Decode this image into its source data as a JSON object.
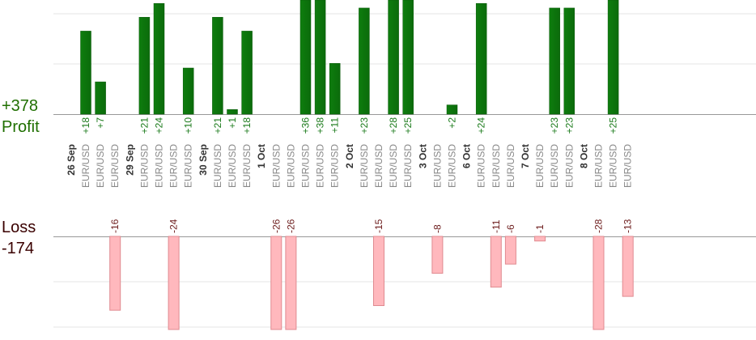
{
  "summary": {
    "profit_total": "+378",
    "profit_label": "Profit",
    "loss_label": "Loss",
    "loss_total": "-174"
  },
  "colors": {
    "profit_bar": "#0b6b0b",
    "profit_text": "#1a7a1a",
    "loss_fill": "#ffb8bd",
    "loss_stroke": "#e08a90",
    "loss_text": "#6b1a1a",
    "profit_summary": "#1f6f00",
    "loss_summary": "#3a0000",
    "grid": "#e6e6e6",
    "axis": "#999999"
  },
  "chart_data": {
    "type": "bar",
    "groups": [
      {
        "date": "26 Sep",
        "trades": [
          {
            "pair": "EUR/USD",
            "value": 18
          },
          {
            "pair": "EUR/USD",
            "value": 7
          },
          {
            "pair": "EUR/USD",
            "value": -16
          }
        ]
      },
      {
        "date": "29 Sep",
        "trades": [
          {
            "pair": "EUR/USD",
            "value": 21
          },
          {
            "pair": "EUR/USD",
            "value": 24
          },
          {
            "pair": "EUR/USD",
            "value": -24
          },
          {
            "pair": "EUR/USD",
            "value": 10
          }
        ]
      },
      {
        "date": "30 Sep",
        "trades": [
          {
            "pair": "EUR/USD",
            "value": 21
          },
          {
            "pair": "EUR/USD",
            "value": 1
          },
          {
            "pair": "EUR/USD",
            "value": 18
          }
        ]
      },
      {
        "date": "1 Oct",
        "trades": [
          {
            "pair": "EUR/USD",
            "value": -26
          },
          {
            "pair": "EUR/USD",
            "value": -26
          },
          {
            "pair": "EUR/USD",
            "value": 36
          },
          {
            "pair": "EUR/USD",
            "value": 38
          },
          {
            "pair": "EUR/USD",
            "value": 11
          }
        ]
      },
      {
        "date": "2 Oct",
        "trades": [
          {
            "pair": "EUR/USD",
            "value": 23
          },
          {
            "pair": "EUR/USD",
            "value": -15
          },
          {
            "pair": "EUR/USD",
            "value": 28
          },
          {
            "pair": "EUR/USD",
            "value": 25
          }
        ]
      },
      {
        "date": "3 Oct",
        "trades": [
          {
            "pair": "EUR/USD",
            "value": -8
          },
          {
            "pair": "EUR/USD",
            "value": 2
          }
        ]
      },
      {
        "date": "6 Oct",
        "trades": [
          {
            "pair": "EUR/USD",
            "value": 24
          },
          {
            "pair": "EUR/USD",
            "value": -11
          },
          {
            "pair": "EUR/USD",
            "value": -6
          }
        ]
      },
      {
        "date": "7 Oct",
        "trades": [
          {
            "pair": "EUR/USD",
            "value": -1
          },
          {
            "pair": "EUR/USD",
            "value": 23
          },
          {
            "pair": "EUR/USD",
            "value": 23
          }
        ]
      },
      {
        "date": "8 Oct",
        "trades": [
          {
            "pair": "EUR/USD",
            "value": -28
          },
          {
            "pair": "EUR/USD",
            "value": 25
          },
          {
            "pair": "EUR/USD",
            "value": -13
          }
        ]
      }
    ]
  }
}
